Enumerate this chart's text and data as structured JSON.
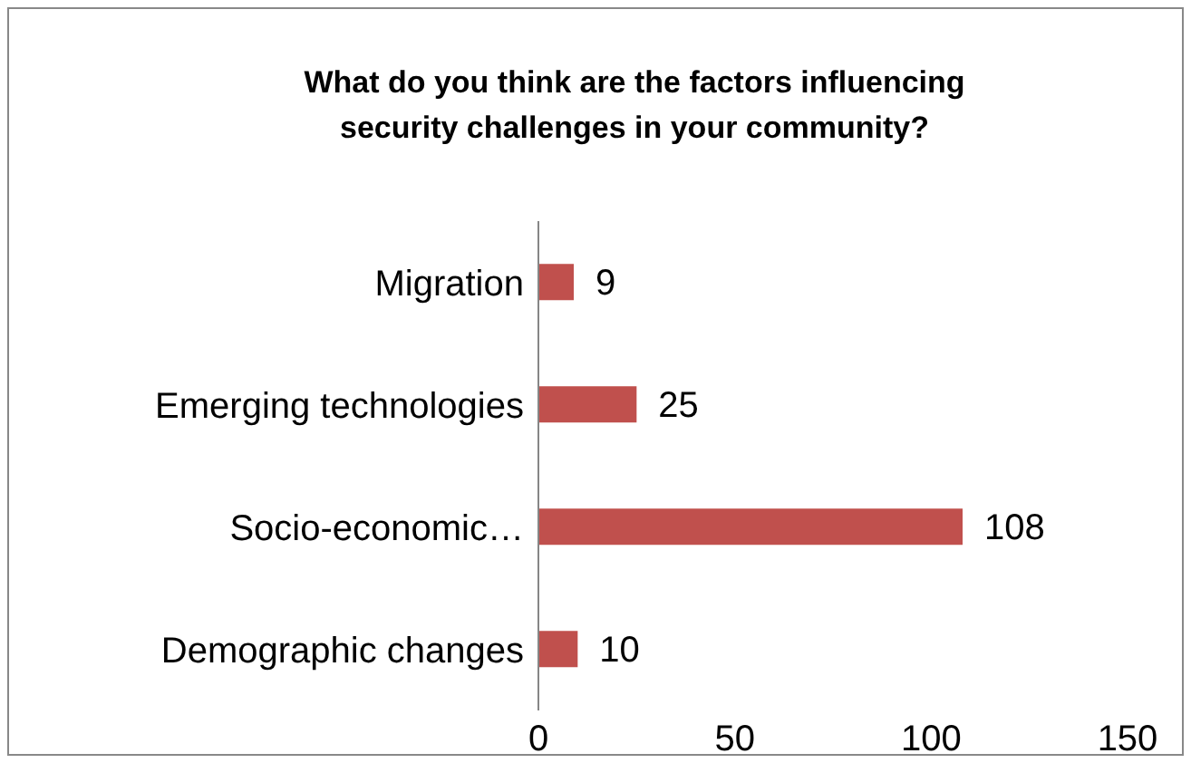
{
  "chart_data": {
    "type": "bar",
    "orientation": "horizontal",
    "title": "What do you think are the factors influencing security challenges in your community?",
    "categories": [
      "Migration",
      "Emerging technologies",
      "Socio-economic…",
      "Demographic changes"
    ],
    "values": [
      9,
      25,
      108,
      10
    ],
    "color": "#c0504d",
    "xlim": [
      0,
      150
    ],
    "xticks": [
      0,
      50,
      100,
      150
    ],
    "data_labels": true,
    "grid": false
  }
}
